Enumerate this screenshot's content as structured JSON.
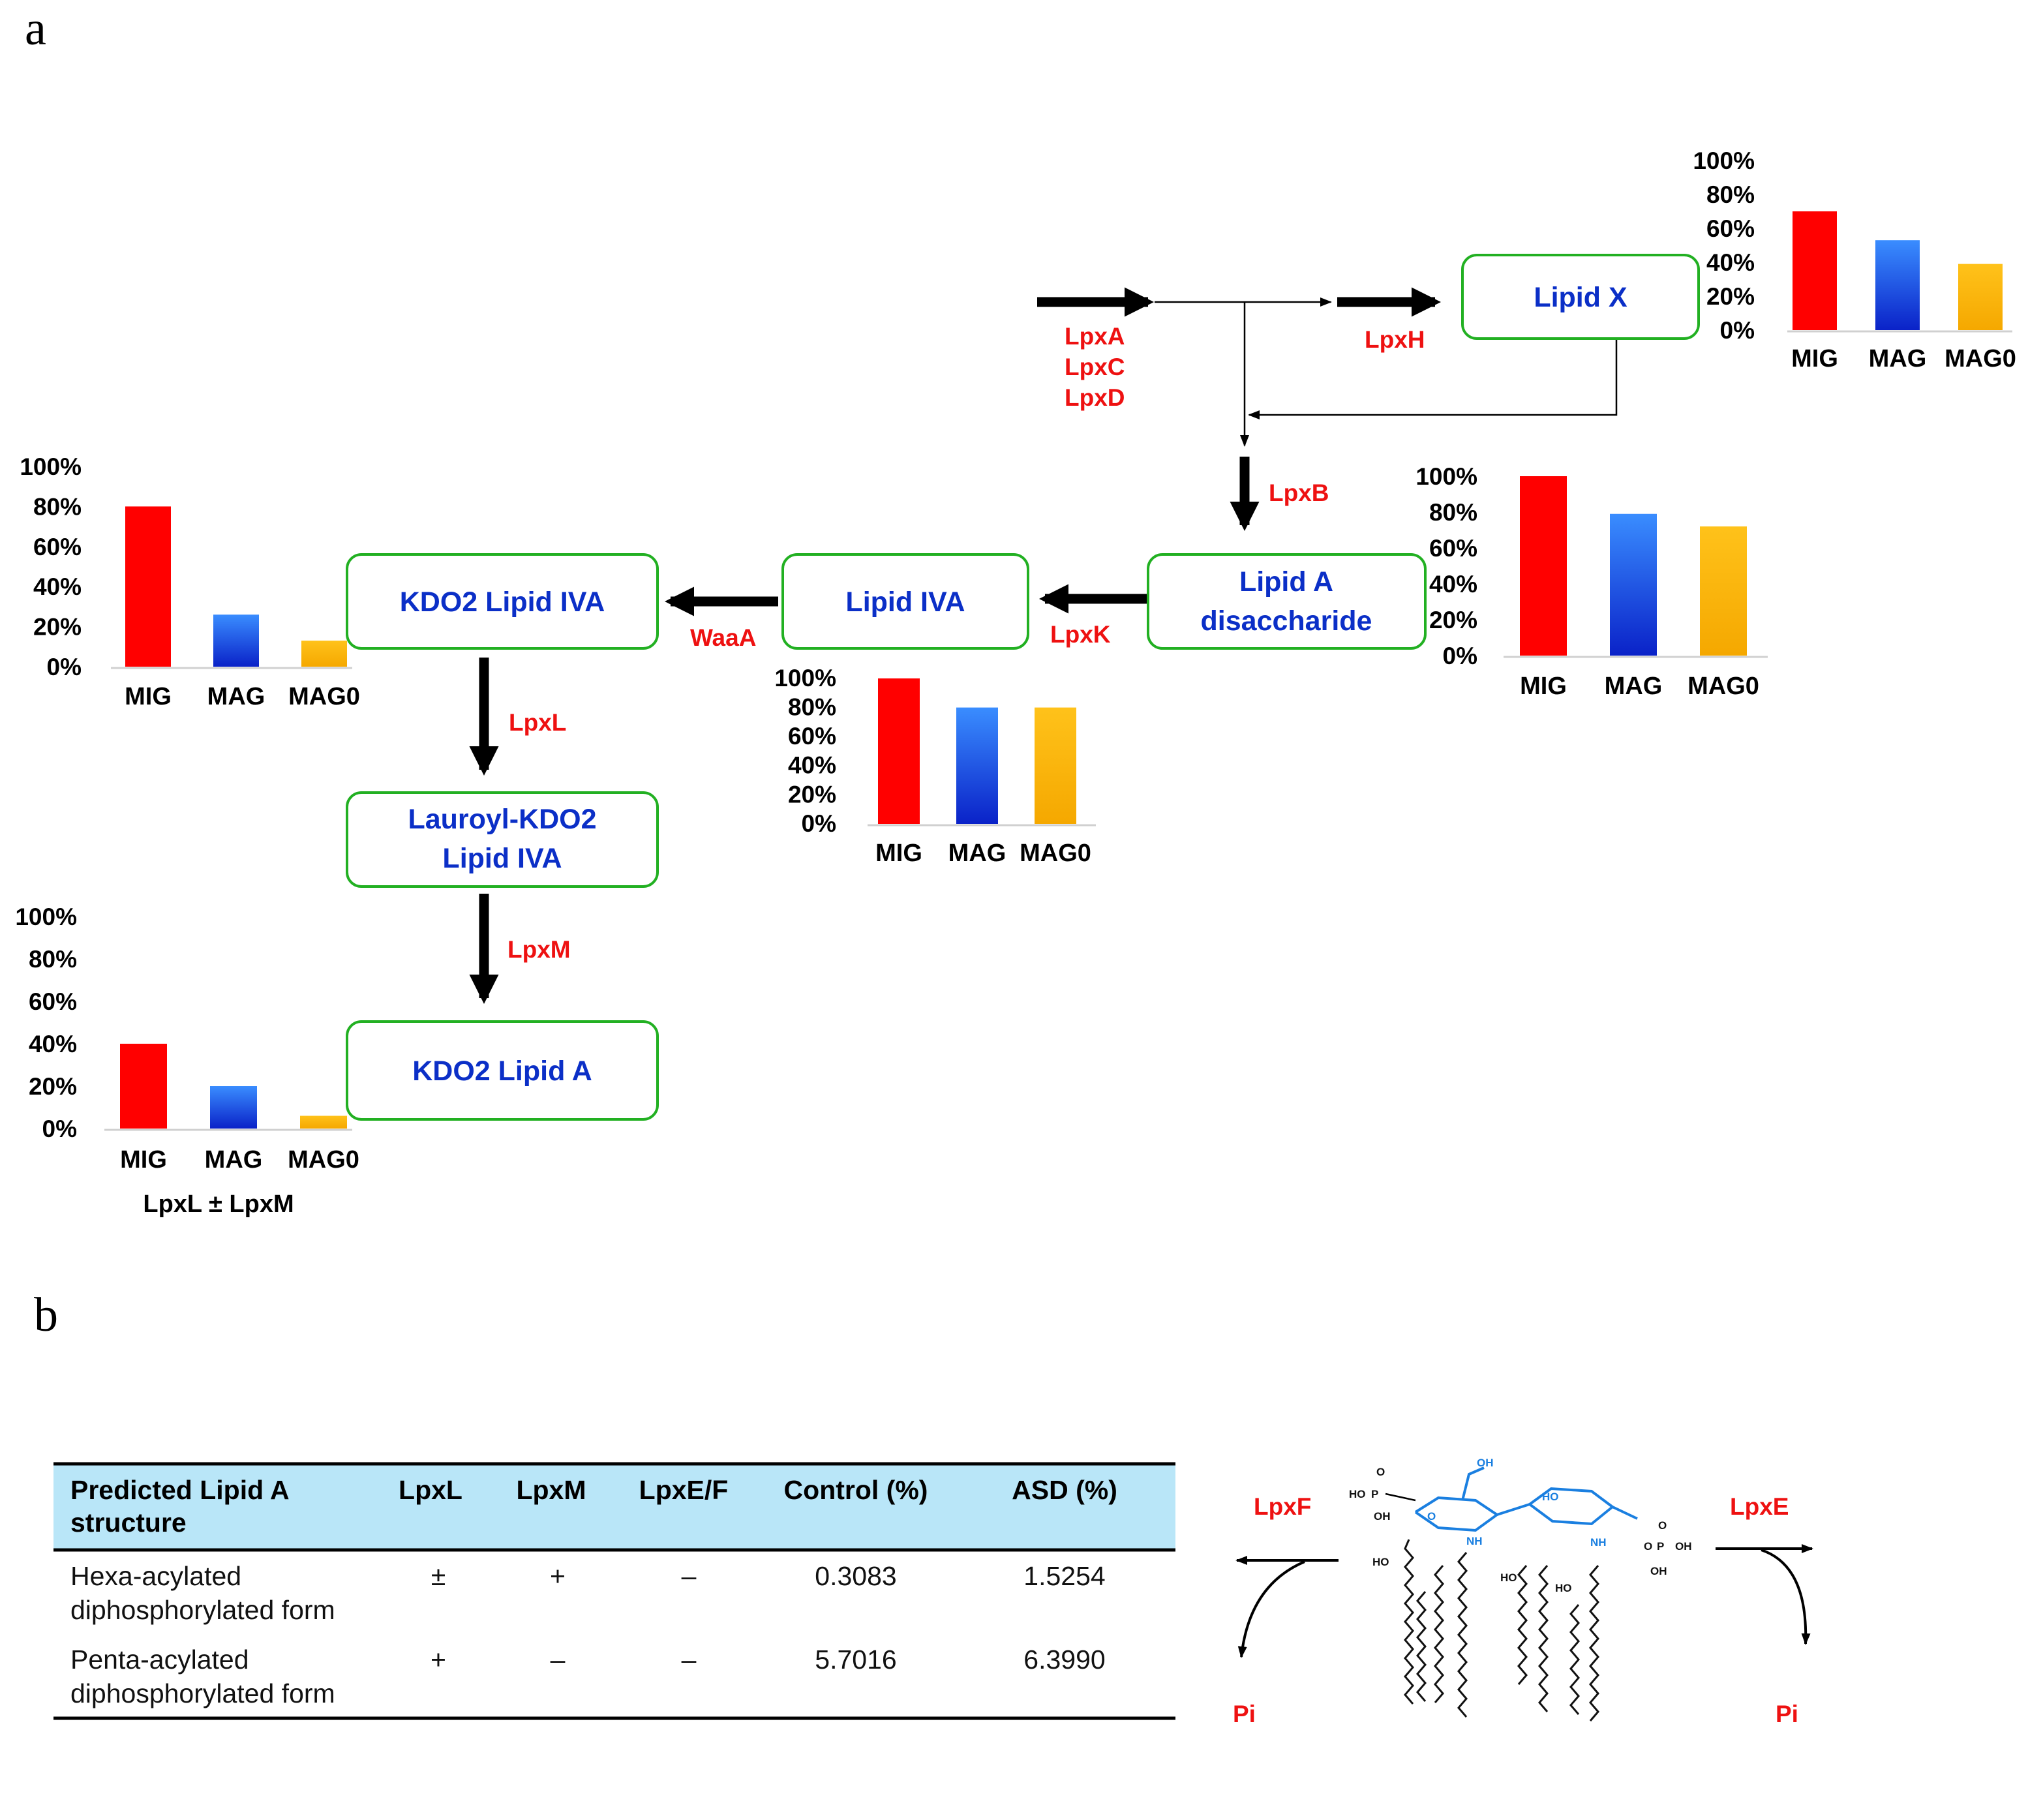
{
  "panels": {
    "a": "a",
    "b": "b"
  },
  "nodes": {
    "lipid_x": "Lipid X",
    "lipid_a_disaccharide_1": "Lipid A",
    "lipid_a_disaccharide_2": "disaccharide",
    "lipid_iva": "Lipid IVA",
    "kdo2_lipid_iva": "KDO2 Lipid IVA",
    "lauroyl_kdo2_lipid_iva_1": "Lauroyl-KDO2",
    "lauroyl_kdo2_lipid_iva_2": "Lipid IVA",
    "kdo2_lipid_a": "KDO2 Lipid A"
  },
  "enzymes": {
    "lpxa": "LpxA",
    "lpxc": "LpxC",
    "lpxd": "LpxD",
    "lpxh": "LpxH",
    "lpxb": "LpxB",
    "lpxk": "LpxK",
    "waaa": "WaaA",
    "lpxl": "LpxL",
    "lpxm": "LpxM",
    "lpxf": "LpxF",
    "lpxe": "LpxE",
    "pi_left": "Pi",
    "pi_right": "Pi"
  },
  "colors": {
    "MIG": "#ff0000",
    "MAG": "#1e73e8",
    "MAG0": "#ffb400"
  },
  "chart_data": [
    {
      "id": "lipid_x",
      "type": "bar",
      "categories": [
        "MIG",
        "MAG",
        "MAG0"
      ],
      "values": [
        70,
        53,
        39
      ],
      "ylim": [
        0,
        100
      ],
      "yticks": [
        "100%",
        "80%",
        "60%",
        "40%",
        "20%",
        "0%"
      ],
      "subtitle": ""
    },
    {
      "id": "lipid_a_disaccharide",
      "type": "bar",
      "categories": [
        "MIG",
        "MAG",
        "MAG0"
      ],
      "values": [
        100,
        79,
        72
      ],
      "ylim": [
        0,
        100
      ],
      "yticks": [
        "100%",
        "80%",
        "60%",
        "40%",
        "20%",
        "0%"
      ],
      "subtitle": ""
    },
    {
      "id": "lipid_iva",
      "type": "bar",
      "categories": [
        "MIG",
        "MAG",
        "MAG0"
      ],
      "values": [
        100,
        80,
        80
      ],
      "ylim": [
        0,
        100
      ],
      "yticks": [
        "100%",
        "80%",
        "60%",
        "40%",
        "20%",
        "0%"
      ],
      "subtitle": ""
    },
    {
      "id": "kdo2_lipid_iva",
      "type": "bar",
      "categories": [
        "MIG",
        "MAG",
        "MAG0"
      ],
      "values": [
        80,
        26,
        13
      ],
      "ylim": [
        0,
        100
      ],
      "yticks": [
        "100%",
        "80%",
        "60%",
        "40%",
        "20%",
        "0%"
      ],
      "subtitle": ""
    },
    {
      "id": "kdo2_lipid_a",
      "type": "bar",
      "categories": [
        "MIG",
        "MAG",
        "MAG0"
      ],
      "values": [
        40,
        20,
        6
      ],
      "ylim": [
        0,
        100
      ],
      "yticks": [
        "100%",
        "80%",
        "60%",
        "40%",
        "20%",
        "0%"
      ],
      "subtitle": "LpxL ± LpxM"
    }
  ],
  "table": {
    "headers": {
      "structure_1": "Predicted Lipid A",
      "structure_2": "structure",
      "lpxl": "LpxL",
      "lpxm": "LpxM",
      "lpxef": "LpxE/F",
      "control": "Control (%)",
      "asd": "ASD (%)"
    },
    "rows": [
      {
        "structure_1": "Hexa-acylated",
        "structure_2": "diphosphorylated form",
        "lpxl": "±",
        "lpxm": "+",
        "lpxef": "–",
        "control": "0.3083",
        "asd": "1.5254"
      },
      {
        "structure_1": "Penta-acylated",
        "structure_2": "diphosphorylated form",
        "lpxl": "+",
        "lpxm": "–",
        "lpxef": "–",
        "control": "5.7016",
        "asd": "6.3990"
      }
    ]
  },
  "chem_labels": {
    "ho": "HO",
    "oh": "OH",
    "nh": "NH",
    "o": "O",
    "p": "P"
  }
}
